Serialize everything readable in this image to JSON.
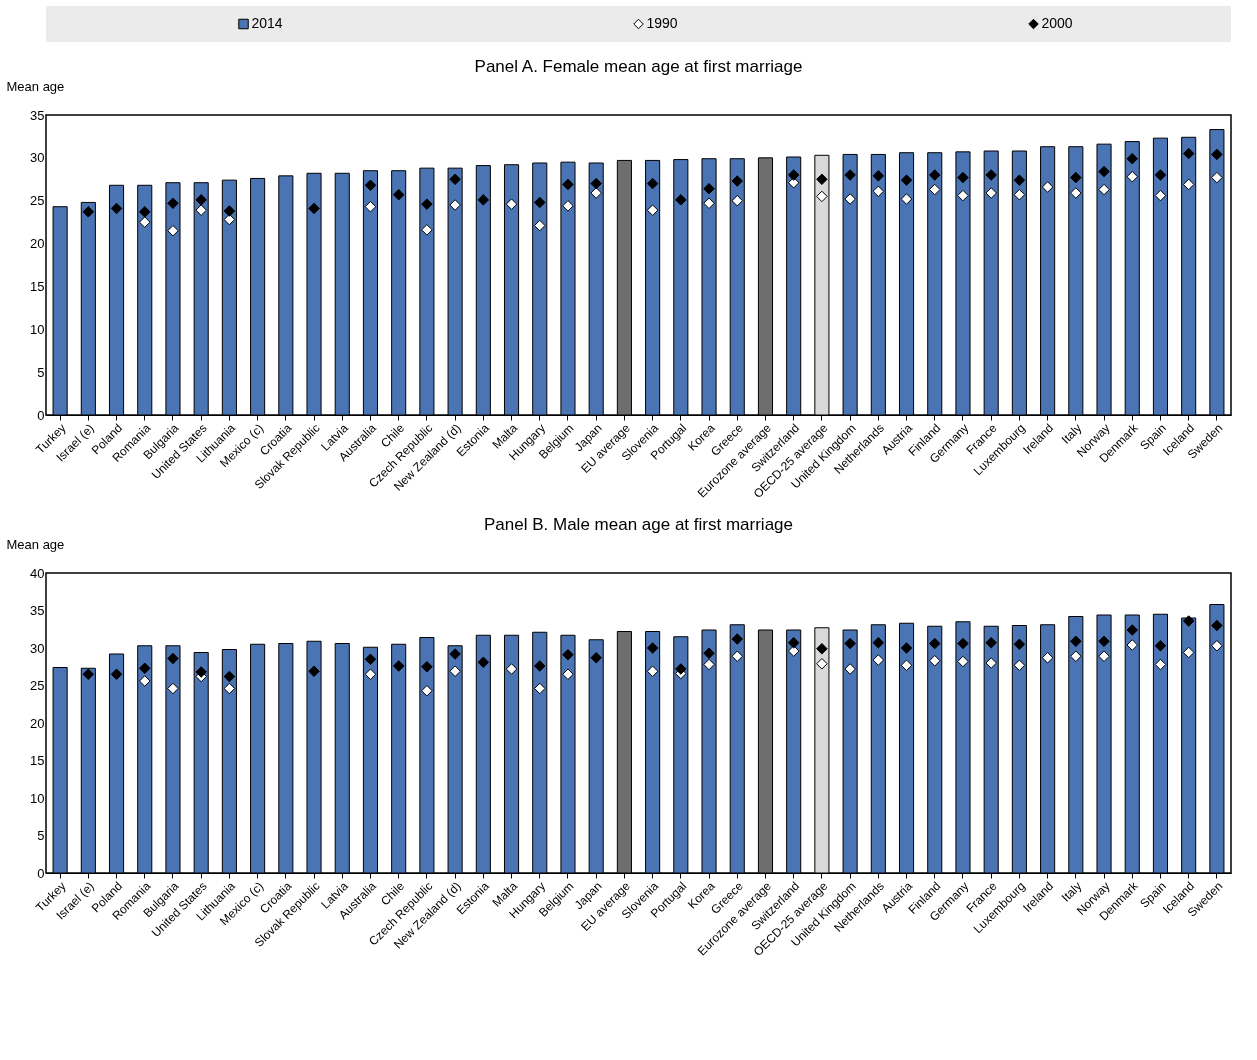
{
  "chart_data": [
    {
      "type": "bar",
      "title": "Panel A. Female mean age at first marriage",
      "ylabel": "Mean age",
      "legend": "top",
      "marker": "diamond",
      "grid": false,
      "categories": [
        "Turkey",
        "Israel (e)",
        "Poland",
        "Romania",
        "Bulgaria",
        "United States",
        "Lithuania",
        "Mexico (c)",
        "Croatia",
        "Slovak Republic",
        "Latvia",
        "Australia",
        "Chile",
        "Czech Republic",
        "New Zealand (d)",
        "Estonia",
        "Malta",
        "Hungary",
        "Belgium",
        "Japan",
        "EU average",
        "Slovenia",
        "Portugal",
        "Korea",
        "Greece",
        "Eurozone average",
        "Switzerland",
        "OECD-25 average",
        "United Kingdom",
        "Netherlands",
        "Austria",
        "Finland",
        "Germany",
        "France",
        "Luxembourg",
        "Ireland",
        "Italy",
        "Norway",
        "Denmark",
        "Spain",
        "Iceland",
        "Sweden"
      ],
      "ylim": [
        0,
        35
      ],
      "yticks": [
        0,
        5,
        10,
        15,
        20,
        25,
        30,
        35
      ],
      "series": [
        {
          "name": "2014",
          "color": "#4a74b4",
          "colors": [
            null,
            null,
            null,
            null,
            null,
            null,
            null,
            null,
            null,
            null,
            null,
            null,
            null,
            null,
            null,
            null,
            null,
            null,
            null,
            null,
            "#6e6e6e",
            null,
            null,
            null,
            null,
            "#6e6e6e",
            null,
            "#d9d9d9",
            null,
            null,
            null,
            null,
            null,
            null,
            null,
            null,
            null,
            null,
            null,
            null,
            null,
            null
          ],
          "values": [
            24.3,
            24.8,
            26.8,
            26.8,
            27.1,
            27.1,
            27.4,
            27.6,
            27.9,
            28.2,
            28.2,
            28.5,
            28.5,
            28.8,
            28.8,
            29.1,
            29.2,
            29.4,
            29.5,
            29.4,
            29.7,
            29.7,
            29.8,
            29.9,
            29.9,
            30.0,
            30.1,
            30.3,
            30.4,
            30.4,
            30.6,
            30.6,
            30.7,
            30.8,
            30.8,
            31.3,
            31.3,
            31.6,
            31.9,
            32.3,
            32.4,
            33.3
          ]
        },
        {
          "name": "1990",
          "type": "scatter",
          "color": "#ffffff",
          "values": [
            null,
            null,
            null,
            22.5,
            21.5,
            23.9,
            22.8,
            null,
            null,
            null,
            null,
            24.3,
            null,
            21.6,
            24.5,
            null,
            24.6,
            22.1,
            24.4,
            25.9,
            null,
            23.9,
            null,
            24.7,
            25.0,
            null,
            27.1,
            25.5,
            25.2,
            26.1,
            25.2,
            26.3,
            25.6,
            25.9,
            25.7,
            26.6,
            25.9,
            26.3,
            27.8,
            25.6,
            26.9,
            27.7
          ]
        },
        {
          "name": "2000",
          "type": "scatter",
          "color": "#000000",
          "values": [
            null,
            23.7,
            24.1,
            23.7,
            24.7,
            25.1,
            23.8,
            null,
            null,
            24.1,
            null,
            26.8,
            25.7,
            24.6,
            27.5,
            25.1,
            null,
            24.8,
            26.9,
            27.0,
            null,
            27.0,
            25.1,
            26.4,
            27.3,
            null,
            28.0,
            27.5,
            28.0,
            27.9,
            27.4,
            28.0,
            27.7,
            28.0,
            27.4,
            null,
            27.7,
            28.4,
            29.9,
            28.0,
            30.5,
            30.4
          ]
        }
      ]
    },
    {
      "type": "bar",
      "title": "Panel B. Male mean age at first marriage",
      "ylabel": "Mean age",
      "marker": "diamond",
      "grid": false,
      "categories": [
        "Turkey",
        "Israel (e)",
        "Poland",
        "Romania",
        "Bulgaria",
        "United States",
        "Lithuania",
        "Mexico (c)",
        "Croatia",
        "Slovak Republic",
        "Latvia",
        "Australia",
        "Chile",
        "Czech Republic",
        "New Zealand (d)",
        "Estonia",
        "Malta",
        "Hungary",
        "Belgium",
        "Japan",
        "EU average",
        "Slovenia",
        "Portugal",
        "Korea",
        "Greece",
        "Eurozone average",
        "Switzerland",
        "OECD-25 average",
        "United Kingdom",
        "Netherlands",
        "Austria",
        "Finland",
        "Germany",
        "France",
        "Luxembourg",
        "Ireland",
        "Italy",
        "Norway",
        "Denmark",
        "Spain",
        "Iceland",
        "Sweden"
      ],
      "ylim": [
        0,
        40
      ],
      "yticks": [
        0,
        5,
        10,
        15,
        20,
        25,
        30,
        35,
        40
      ],
      "series": [
        {
          "name": "2014",
          "color": "#4a74b4",
          "colors": [
            null,
            null,
            null,
            null,
            null,
            null,
            null,
            null,
            null,
            null,
            null,
            null,
            null,
            null,
            null,
            null,
            null,
            null,
            null,
            null,
            "#6e6e6e",
            null,
            null,
            null,
            null,
            "#6e6e6e",
            null,
            "#d9d9d9",
            null,
            null,
            null,
            null,
            null,
            null,
            null,
            null,
            null,
            null,
            null,
            null,
            null,
            null
          ],
          "values": [
            27.4,
            27.3,
            29.2,
            30.3,
            30.3,
            29.4,
            29.8,
            30.5,
            30.6,
            30.9,
            30.6,
            30.1,
            30.5,
            31.4,
            30.3,
            31.7,
            31.7,
            32.1,
            31.7,
            31.1,
            32.2,
            32.2,
            31.5,
            32.4,
            33.1,
            32.4,
            32.4,
            32.7,
            32.4,
            33.1,
            33.3,
            32.9,
            33.5,
            32.9,
            33.0,
            33.1,
            34.2,
            34.4,
            34.4,
            34.5,
            34.0,
            35.8
          ]
        },
        {
          "name": "1990",
          "type": "scatter",
          "color": "#ffffff",
          "values": [
            null,
            null,
            null,
            25.6,
            24.6,
            26.2,
            24.6,
            null,
            null,
            null,
            null,
            26.5,
            null,
            24.3,
            26.9,
            null,
            27.2,
            24.6,
            26.5,
            null,
            null,
            26.9,
            26.6,
            27.8,
            28.9,
            null,
            29.6,
            27.9,
            27.2,
            28.4,
            27.7,
            28.3,
            28.2,
            28.0,
            27.7,
            28.7,
            28.9,
            28.9,
            30.4,
            27.8,
            29.4,
            30.3
          ]
        },
        {
          "name": "2000",
          "type": "scatter",
          "color": "#000000",
          "values": [
            null,
            26.5,
            26.5,
            27.3,
            28.6,
            26.8,
            26.2,
            null,
            null,
            26.9,
            null,
            28.5,
            27.6,
            27.5,
            29.2,
            28.1,
            null,
            27.6,
            29.1,
            28.7,
            null,
            30.0,
            27.2,
            29.3,
            31.2,
            null,
            30.7,
            29.9,
            30.6,
            30.7,
            30.0,
            30.6,
            30.6,
            30.7,
            30.5,
            null,
            30.9,
            30.9,
            32.4,
            30.3,
            33.6,
            33.0
          ]
        }
      ]
    }
  ]
}
